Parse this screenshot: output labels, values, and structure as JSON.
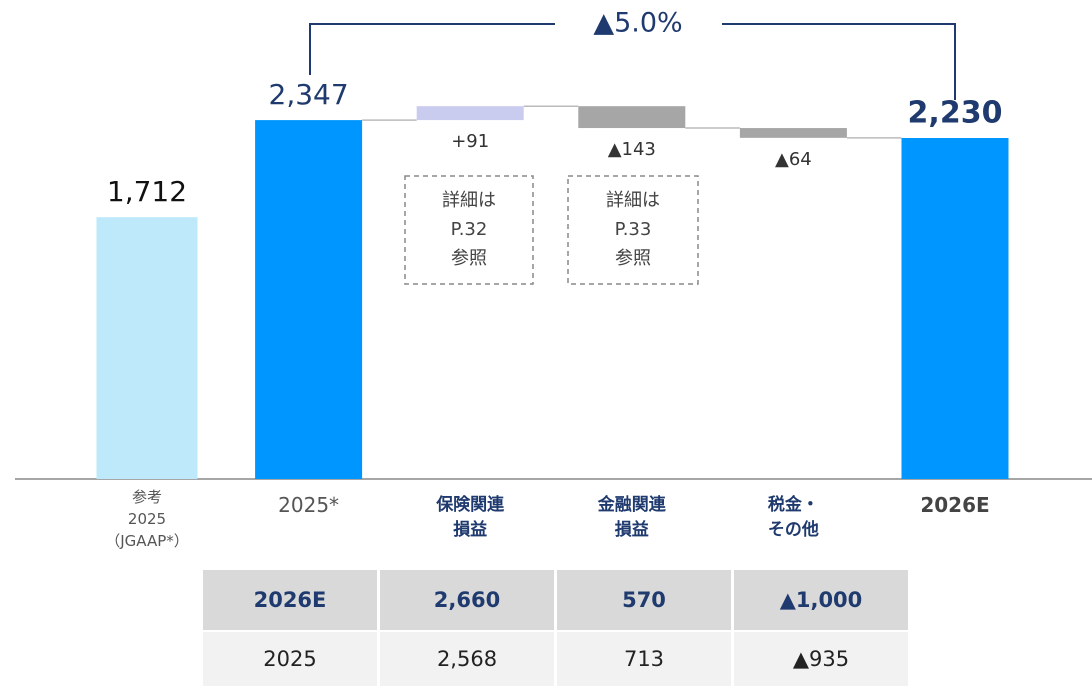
{
  "chart_data": {
    "type": "waterfall",
    "categories": [
      "参考\n2025\n（JGAAP*）",
      "2025*",
      "保険関連\n損益",
      "金融関連\n損益",
      "税金・\nその他",
      "2026E"
    ],
    "values": [
      1712,
      2347,
      91,
      -143,
      -64,
      2230
    ],
    "value_labels": [
      "1,712",
      "2,347",
      "+91",
      "▲143",
      "▲64",
      "2,230"
    ],
    "measure": [
      "absolute",
      "absolute",
      "relative",
      "relative",
      "relative",
      "total"
    ],
    "colors": [
      "#bde9fb",
      "#0096ff",
      "#c9cbef",
      "#a6a6a6",
      "#a6a6a6",
      "#0096ff"
    ],
    "ylim": [
      0,
      2400
    ],
    "annotation": "▲5.0%",
    "notes": [
      [
        "詳細は",
        "P.32",
        "参照"
      ],
      [
        "詳細は",
        "P.33",
        "参照"
      ]
    ]
  },
  "table": {
    "rows": [
      [
        "2026E",
        "2,660",
        "570",
        "▲1,000"
      ],
      [
        "2025",
        "2,568",
        "713",
        "▲935"
      ]
    ]
  }
}
